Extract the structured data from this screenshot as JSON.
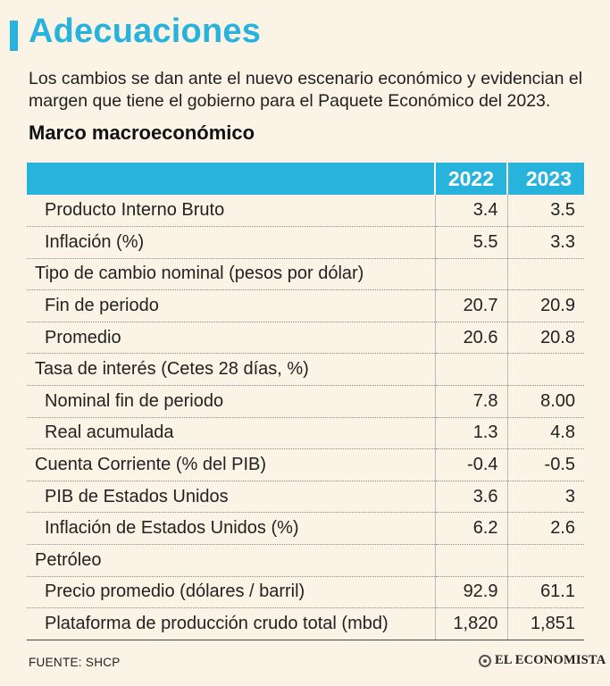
{
  "header": {
    "title": "Adecuaciones",
    "subtitle": "Los cambios se dan ante el nuevo escenario económico y evidencian el margen que tiene el gobierno para el Paquete Económico del 2023.",
    "section_title": "Marco macroeconómico",
    "accent_color": "#27b3dc"
  },
  "table": {
    "columns": [
      "",
      "2022",
      "2023"
    ],
    "rows": [
      {
        "label": "Producto Interno Bruto",
        "v2022": "3.4",
        "v2023": "3.5"
      },
      {
        "label": "Inflación (%)",
        "v2022": "5.5",
        "v2023": "3.3"
      },
      {
        "label": "Tipo de cambio nominal (pesos por dólar)",
        "v2022": "",
        "v2023": ""
      },
      {
        "label": "Fin de periodo",
        "v2022": "20.7",
        "v2023": "20.9"
      },
      {
        "label": "Promedio",
        "v2022": "20.6",
        "v2023": "20.8"
      },
      {
        "label": "Tasa de interés (Cetes 28 días, %)",
        "v2022": "",
        "v2023": ""
      },
      {
        "label": "Nominal fin de periodo",
        "v2022": "7.8",
        "v2023": "8.00"
      },
      {
        "label": "Real acumulada",
        "v2022": "1.3",
        "v2023": "4.8"
      },
      {
        "label": "Cuenta Corriente (% del PIB)",
        "v2022": "-0.4",
        "v2023": "-0.5"
      },
      {
        "label": "PIB de Estados Unidos",
        "v2022": "3.6",
        "v2023": "3"
      },
      {
        "label": "Inflación de Estados Unidos (%)",
        "v2022": "6.2",
        "v2023": "2.6"
      },
      {
        "label": "Petróleo",
        "v2022": "",
        "v2023": ""
      },
      {
        "label": "Precio promedio (dólares / barril)",
        "v2022": "92.9",
        "v2023": "61.1"
      },
      {
        "label": "Plataforma de producción crudo total (mbd)",
        "v2022": "1,820",
        "v2023": "1,851"
      }
    ]
  },
  "footer": {
    "source": "FUENTE: SHCP",
    "logo_text": "EL ECONOMISTA",
    "logo_icon": "el-economista-logo-icon"
  }
}
